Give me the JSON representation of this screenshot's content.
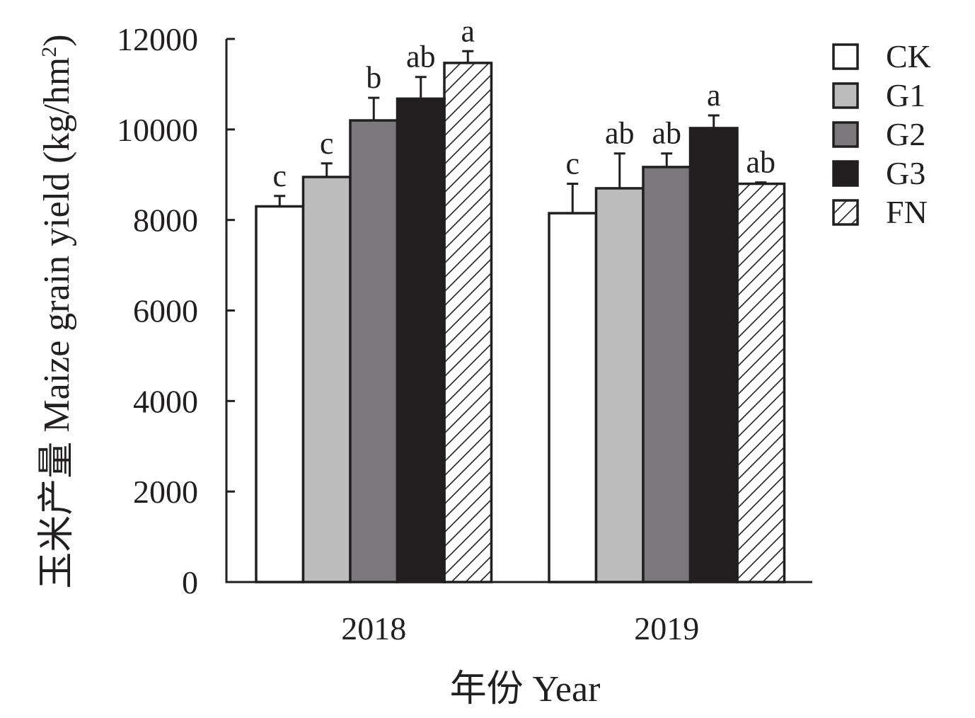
{
  "chart_data": {
    "type": "bar",
    "xlabel": "年份 Year",
    "ylabel_cn": "玉米产量",
    "ylabel_en": "Maize grain yield (kg/hm",
    "ylabel_sup": "2",
    "ylabel_close": ")",
    "ylim": [
      0,
      12000
    ],
    "yticks": [
      0,
      2000,
      4000,
      6000,
      8000,
      10000,
      12000
    ],
    "yticks_text": [
      "0",
      "2000",
      "4000",
      "6000",
      "8000",
      "10000",
      "12000"
    ],
    "categories": [
      "2018",
      "2019"
    ],
    "grid": false,
    "legend_position": "top-right",
    "series": [
      {
        "name": "CK",
        "fill": "#ffffff",
        "pattern": "none",
        "values": [
          8300,
          8150
        ],
        "errors": [
          230,
          650
        ],
        "letters": [
          "c",
          "c"
        ]
      },
      {
        "name": "G1",
        "fill": "#bcbcbc",
        "pattern": "none",
        "values": [
          8950,
          8700
        ],
        "errors": [
          300,
          770
        ],
        "letters": [
          "c",
          "ab"
        ]
      },
      {
        "name": "G2",
        "fill": "#7a787a",
        "pattern": "none",
        "values": [
          10200,
          9170
        ],
        "errors": [
          500,
          300
        ],
        "letters": [
          "b",
          "ab"
        ]
      },
      {
        "name": "G3",
        "fill": "#231f20",
        "pattern": "none",
        "values": [
          10680,
          10030
        ],
        "errors": [
          480,
          280
        ],
        "letters": [
          "ab",
          "a"
        ]
      },
      {
        "name": "FN",
        "fill": "#ffffff",
        "pattern": "diagonal-hatch",
        "values": [
          11470,
          8800
        ],
        "errors": [
          260,
          30
        ],
        "letters": [
          "a",
          "ab"
        ]
      }
    ]
  }
}
